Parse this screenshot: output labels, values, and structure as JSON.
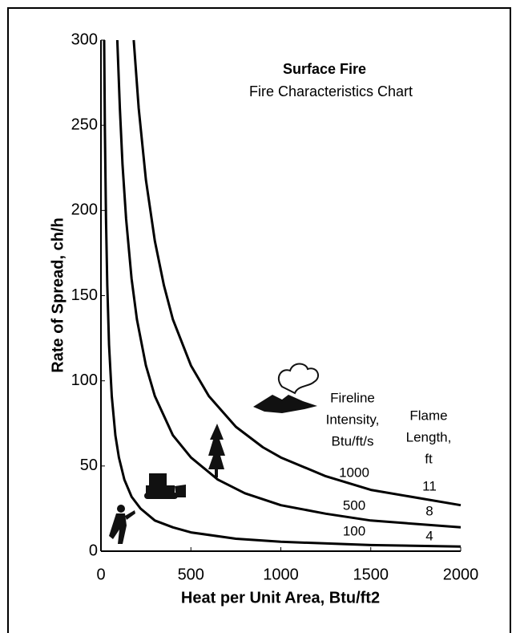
{
  "chart_data": {
    "type": "line",
    "title": "Surface Fire",
    "subtitle": "Fire Characteristics Chart",
    "x_label": "Heat per Unit Area, Btu/ft2",
    "y_label": "Rate of Spread, ch/h",
    "xlim": [
      0,
      2000
    ],
    "ylim": [
      0,
      300
    ],
    "xticks": [
      0,
      500,
      1000,
      1500,
      2000
    ],
    "yticks": [
      0,
      50,
      100,
      150,
      200,
      250,
      300
    ],
    "series_heading": [
      "Fireline",
      "Intensity,",
      "Btu/ft/s"
    ],
    "flame_heading": [
      "Flame",
      "Length,",
      "ft"
    ],
    "series": [
      {
        "name": "100",
        "flame_length": "4",
        "color": "#000000",
        "x": [
          18,
          22,
          28,
          35,
          45,
          60,
          80,
          100,
          130,
          170,
          220,
          300,
          400,
          500,
          750,
          1000,
          1500,
          2000
        ],
        "values": [
          300,
          248,
          195,
          156,
          121,
          91,
          68,
          55,
          42,
          32,
          25,
          18,
          14,
          11,
          7.3,
          5.5,
          3.6,
          2.7
        ]
      },
      {
        "name": "500",
        "flame_length": "8",
        "color": "#000000",
        "x": [
          91,
          105,
          120,
          140,
          170,
          200,
          250,
          300,
          400,
          500,
          650,
          800,
          1000,
          1250,
          1500,
          2000
        ],
        "values": [
          300,
          260,
          227,
          195,
          160,
          136,
          109,
          91,
          68,
          55,
          42,
          34,
          27,
          22,
          18,
          14
        ]
      },
      {
        "name": "1000",
        "flame_length": "11",
        "color": "#000000",
        "x": [
          182,
          210,
          250,
          300,
          350,
          400,
          500,
          600,
          750,
          900,
          1000,
          1250,
          1500,
          2000
        ],
        "values": [
          300,
          260,
          218,
          182,
          156,
          136,
          109,
          91,
          73,
          61,
          55,
          44,
          36,
          27
        ]
      }
    ]
  }
}
